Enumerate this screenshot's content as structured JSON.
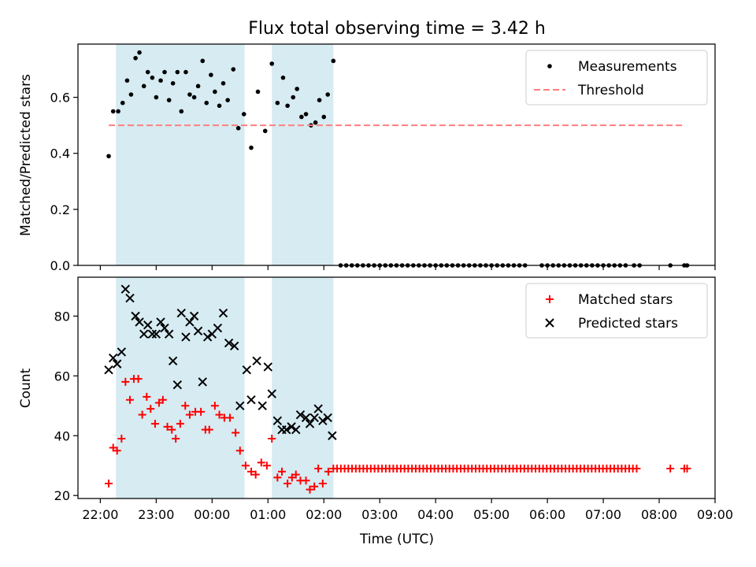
{
  "title": "Flux total observing time = 3.42 h",
  "chart_data": [
    {
      "type": "scatter",
      "ylabel": "Matched/Predicted stars",
      "ylim": [
        0,
        0.79
      ],
      "yticks": [
        0.0,
        0.2,
        0.4,
        0.6
      ],
      "ytick_labels": [
        "0.0",
        "0.2",
        "0.4",
        "0.6"
      ],
      "shaded_intervals": [
        [
          -1.72,
          0.58
        ],
        [
          1.07,
          2.17
        ]
      ],
      "shade_color": "#add8e6",
      "legend_position": "top-right",
      "series": [
        {
          "name": "Measurements",
          "marker": "dot",
          "color": "#000000",
          "points": [
            [
              -1.85,
              0.39
            ],
            [
              -1.77,
              0.55
            ],
            [
              -1.68,
              0.55
            ],
            [
              -1.6,
              0.58
            ],
            [
              -1.52,
              0.66
            ],
            [
              -1.45,
              0.61
            ],
            [
              -1.37,
              0.74
            ],
            [
              -1.3,
              0.76
            ],
            [
              -1.22,
              0.64
            ],
            [
              -1.15,
              0.69
            ],
            [
              -1.07,
              0.67
            ],
            [
              -1.0,
              0.6
            ],
            [
              -0.92,
              0.66
            ],
            [
              -0.85,
              0.69
            ],
            [
              -0.77,
              0.59
            ],
            [
              -0.7,
              0.65
            ],
            [
              -0.62,
              0.69
            ],
            [
              -0.55,
              0.55
            ],
            [
              -0.47,
              0.69
            ],
            [
              -0.4,
              0.61
            ],
            [
              -0.32,
              0.6
            ],
            [
              -0.25,
              0.64
            ],
            [
              -0.17,
              0.73
            ],
            [
              -0.1,
              0.58
            ],
            [
              -0.02,
              0.68
            ],
            [
              0.05,
              0.62
            ],
            [
              0.13,
              0.57
            ],
            [
              0.2,
              0.65
            ],
            [
              0.28,
              0.59
            ],
            [
              0.38,
              0.7
            ],
            [
              0.47,
              0.49
            ],
            [
              0.57,
              0.54
            ],
            [
              0.7,
              0.42
            ],
            [
              0.82,
              0.62
            ],
            [
              0.95,
              0.48
            ],
            [
              1.07,
              0.72
            ],
            [
              1.17,
              0.58
            ],
            [
              1.27,
              0.67
            ],
            [
              1.35,
              0.57
            ],
            [
              1.45,
              0.6
            ],
            [
              1.52,
              0.63
            ],
            [
              1.6,
              0.53
            ],
            [
              1.68,
              0.54
            ],
            [
              1.77,
              0.5
            ],
            [
              1.85,
              0.51
            ],
            [
              1.92,
              0.59
            ],
            [
              2.0,
              0.53
            ],
            [
              2.07,
              0.61
            ],
            [
              2.17,
              0.73
            ],
            [
              2.3,
              0
            ],
            [
              2.4,
              0
            ],
            [
              2.5,
              0
            ],
            [
              2.6,
              0
            ],
            [
              2.7,
              0
            ],
            [
              2.8,
              0
            ],
            [
              2.9,
              0
            ],
            [
              3.0,
              0
            ],
            [
              3.1,
              0
            ],
            [
              3.2,
              0
            ],
            [
              3.3,
              0
            ],
            [
              3.4,
              0
            ],
            [
              3.5,
              0
            ],
            [
              3.6,
              0
            ],
            [
              3.7,
              0
            ],
            [
              3.8,
              0
            ],
            [
              3.9,
              0
            ],
            [
              4.0,
              0
            ],
            [
              4.1,
              0
            ],
            [
              4.2,
              0
            ],
            [
              4.3,
              0
            ],
            [
              4.4,
              0
            ],
            [
              4.5,
              0
            ],
            [
              4.6,
              0
            ],
            [
              4.7,
              0
            ],
            [
              4.8,
              0
            ],
            [
              4.9,
              0
            ],
            [
              5.0,
              0
            ],
            [
              5.1,
              0
            ],
            [
              5.2,
              0
            ],
            [
              5.3,
              0
            ],
            [
              5.4,
              0
            ],
            [
              5.5,
              0
            ],
            [
              5.6,
              0
            ],
            [
              5.9,
              0
            ],
            [
              6.0,
              0
            ],
            [
              6.1,
              0
            ],
            [
              6.2,
              0
            ],
            [
              6.3,
              0
            ],
            [
              6.4,
              0
            ],
            [
              6.5,
              0
            ],
            [
              6.6,
              0
            ],
            [
              6.7,
              0
            ],
            [
              6.8,
              0
            ],
            [
              6.9,
              0
            ],
            [
              7.0,
              0
            ],
            [
              7.1,
              0
            ],
            [
              7.2,
              0
            ],
            [
              7.3,
              0
            ],
            [
              7.4,
              0
            ],
            [
              7.55,
              0
            ],
            [
              7.65,
              0
            ],
            [
              8.2,
              0
            ],
            [
              8.45,
              0
            ],
            [
              8.5,
              0
            ]
          ]
        },
        {
          "name": "Threshold",
          "type": "line",
          "style": "dashed",
          "color": "#ff7f7f",
          "points": [
            [
              -1.85,
              0.5
            ],
            [
              8.45,
              0.5
            ]
          ]
        }
      ]
    },
    {
      "type": "scatter",
      "ylabel": "Count",
      "xlabel": "Time (UTC)",
      "ylim": [
        19,
        93
      ],
      "yticks": [
        20,
        40,
        60,
        80
      ],
      "ytick_labels": [
        "20",
        "40",
        "60",
        "80"
      ],
      "xlim": [
        -2.4,
        9
      ],
      "xticks": [
        -2,
        -1,
        0,
        1,
        2,
        3,
        4,
        5,
        6,
        7,
        8,
        9
      ],
      "xtick_labels": [
        "22:00",
        "23:00",
        "00:00",
        "01:00",
        "02:00",
        "03:00",
        "04:00",
        "05:00",
        "06:00",
        "07:00",
        "08:00",
        "09:00"
      ],
      "shaded_intervals": [
        [
          -1.72,
          0.58
        ],
        [
          1.07,
          2.17
        ]
      ],
      "shade_color": "#add8e6",
      "legend_position": "top-right",
      "series": [
        {
          "name": "Matched stars",
          "marker": "plus",
          "color": "#ff0000",
          "points": [
            [
              -1.85,
              24
            ],
            [
              -1.77,
              36
            ],
            [
              -1.7,
              35
            ],
            [
              -1.62,
              39
            ],
            [
              -1.55,
              58
            ],
            [
              -1.47,
              52
            ],
            [
              -1.4,
              59
            ],
            [
              -1.32,
              59
            ],
            [
              -1.25,
              47
            ],
            [
              -1.17,
              53
            ],
            [
              -1.1,
              49
            ],
            [
              -1.02,
              44
            ],
            [
              -0.95,
              51
            ],
            [
              -0.88,
              52
            ],
            [
              -0.8,
              43
            ],
            [
              -0.72,
              42
            ],
            [
              -0.65,
              39
            ],
            [
              -0.57,
              44
            ],
            [
              -0.48,
              50
            ],
            [
              -0.4,
              47
            ],
            [
              -0.3,
              48
            ],
            [
              -0.2,
              48
            ],
            [
              -0.12,
              42
            ],
            [
              -0.05,
              42
            ],
            [
              0.05,
              50
            ],
            [
              0.13,
              47
            ],
            [
              0.22,
              46
            ],
            [
              0.32,
              46
            ],
            [
              0.42,
              41
            ],
            [
              0.5,
              35
            ],
            [
              0.6,
              30
            ],
            [
              0.7,
              28
            ],
            [
              0.78,
              27
            ],
            [
              0.88,
              31
            ],
            [
              0.98,
              30
            ],
            [
              1.07,
              39
            ],
            [
              1.17,
              26
            ],
            [
              1.25,
              28
            ],
            [
              1.35,
              24
            ],
            [
              1.43,
              26
            ],
            [
              1.5,
              27
            ],
            [
              1.58,
              25
            ],
            [
              1.68,
              25
            ],
            [
              1.75,
              22
            ],
            [
              1.83,
              23
            ],
            [
              1.9,
              29
            ],
            [
              1.98,
              24
            ],
            [
              2.08,
              28
            ]
          ]
        },
        {
          "name": "Predicted stars",
          "marker": "x",
          "color": "#000000",
          "points": [
            [
              -1.85,
              62
            ],
            [
              -1.77,
              66
            ],
            [
              -1.7,
              64
            ],
            [
              -1.62,
              68
            ],
            [
              -1.55,
              89
            ],
            [
              -1.47,
              86
            ],
            [
              -1.37,
              80
            ],
            [
              -1.3,
              78
            ],
            [
              -1.22,
              74
            ],
            [
              -1.15,
              77
            ],
            [
              -1.07,
              74
            ],
            [
              -1.0,
              74
            ],
            [
              -0.92,
              78
            ],
            [
              -0.85,
              76
            ],
            [
              -0.77,
              74
            ],
            [
              -0.7,
              65
            ],
            [
              -0.62,
              57
            ],
            [
              -0.55,
              81
            ],
            [
              -0.47,
              73
            ],
            [
              -0.4,
              78
            ],
            [
              -0.32,
              80
            ],
            [
              -0.25,
              75
            ],
            [
              -0.17,
              58
            ],
            [
              -0.08,
              73
            ],
            [
              0.0,
              74
            ],
            [
              0.1,
              76
            ],
            [
              0.2,
              81
            ],
            [
              0.3,
              71
            ],
            [
              0.4,
              70
            ],
            [
              0.5,
              50
            ],
            [
              0.62,
              62
            ],
            [
              0.7,
              52
            ],
            [
              0.8,
              65
            ],
            [
              0.9,
              50
            ],
            [
              1.0,
              63
            ],
            [
              1.07,
              54
            ],
            [
              1.17,
              45
            ],
            [
              1.25,
              42
            ],
            [
              1.33,
              42
            ],
            [
              1.42,
              43
            ],
            [
              1.5,
              42
            ],
            [
              1.58,
              47
            ],
            [
              1.68,
              46
            ],
            [
              1.75,
              44
            ],
            [
              1.83,
              46
            ],
            [
              1.9,
              49
            ],
            [
              1.98,
              45
            ],
            [
              2.07,
              46
            ],
            [
              2.15,
              40
            ]
          ]
        }
      ],
      "constant_tail": {
        "series": "Matched stars",
        "y": 29,
        "x_start": 2.17,
        "x_end": 7.6,
        "step": 0.067,
        "extra_x": [
          8.2,
          8.45,
          8.5
        ]
      }
    }
  ]
}
